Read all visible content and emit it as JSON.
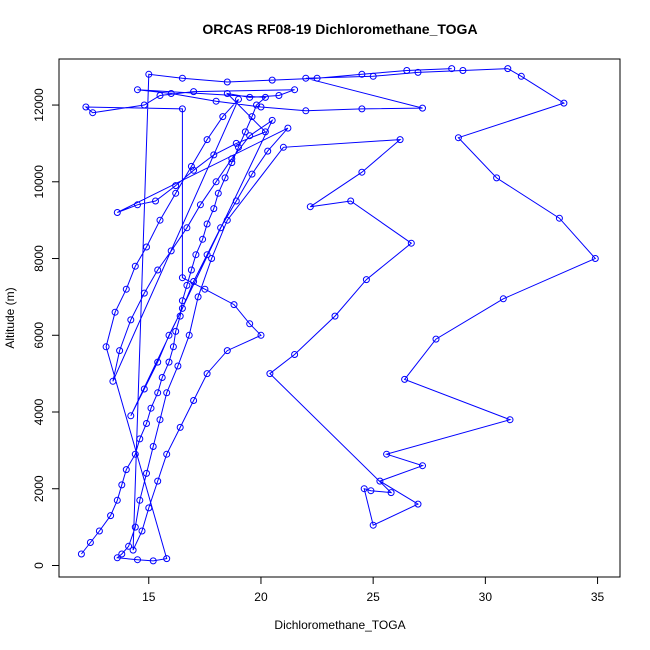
{
  "chart_data": {
    "type": "line",
    "title": "ORCAS RF08-19 Dichloromethane_TOGA",
    "xlabel": "Dichloromethane_TOGA",
    "ylabel": "Altitude (m)",
    "xlim": [
      11,
      36
    ],
    "ylim": [
      -300,
      13200
    ],
    "xticks": [
      15,
      20,
      25,
      30,
      35
    ],
    "yticks": [
      0,
      2000,
      4000,
      6000,
      8000,
      10000,
      12000
    ],
    "markers": "open-circle",
    "series_color": "#0000ff",
    "grid": false,
    "series": [
      {
        "points": [
          [
            12.0,
            300
          ],
          [
            12.4,
            600
          ],
          [
            12.8,
            900
          ],
          [
            13.3,
            1300
          ],
          [
            13.6,
            1700
          ],
          [
            13.8,
            2100
          ],
          [
            14.0,
            2500
          ],
          [
            14.4,
            2900
          ],
          [
            14.6,
            3300
          ],
          [
            14.9,
            3700
          ],
          [
            15.1,
            4100
          ],
          [
            15.4,
            4500
          ],
          [
            15.6,
            4900
          ],
          [
            15.9,
            5300
          ],
          [
            16.1,
            5700
          ],
          [
            16.2,
            6100
          ],
          [
            16.4,
            6500
          ],
          [
            16.5,
            6900
          ],
          [
            16.7,
            7300
          ],
          [
            16.9,
            7700
          ],
          [
            17.1,
            8100
          ],
          [
            17.4,
            8500
          ],
          [
            17.6,
            8900
          ],
          [
            17.9,
            9300
          ],
          [
            18.1,
            9700
          ],
          [
            18.4,
            10100
          ],
          [
            18.7,
            10500
          ],
          [
            19.0,
            10900
          ],
          [
            19.3,
            11300
          ],
          [
            19.6,
            11700
          ],
          [
            19.8,
            12000
          ],
          [
            20.2,
            12200
          ],
          [
            14.5,
            12400
          ],
          [
            16.0,
            12300
          ],
          [
            18.0,
            12100
          ],
          [
            20.0,
            11950
          ],
          [
            22.0,
            11850
          ],
          [
            24.5,
            11900
          ],
          [
            27.2,
            11920
          ],
          [
            22.0,
            12700
          ],
          [
            25.0,
            12750
          ],
          [
            27.0,
            12850
          ],
          [
            29.0,
            12900
          ],
          [
            31.0,
            12950
          ],
          [
            31.6,
            12750
          ],
          [
            33.5,
            12050
          ],
          [
            28.8,
            11150
          ],
          [
            30.5,
            10100
          ],
          [
            33.3,
            9050
          ],
          [
            34.9,
            8000
          ],
          [
            30.8,
            6950
          ],
          [
            27.8,
            5900
          ],
          [
            26.4,
            4850
          ],
          [
            31.1,
            3800
          ],
          [
            25.6,
            2900
          ],
          [
            27.2,
            2600
          ],
          [
            25.3,
            2200
          ],
          [
            27.0,
            1600
          ],
          [
            25.0,
            1050
          ],
          [
            24.6,
            2000
          ],
          [
            24.9,
            1950
          ],
          [
            25.8,
            1900
          ],
          [
            20.4,
            5000
          ],
          [
            21.5,
            5500
          ],
          [
            23.3,
            6500
          ],
          [
            24.7,
            7450
          ],
          [
            26.7,
            8400
          ],
          [
            24.0,
            9500
          ],
          [
            22.2,
            9350
          ],
          [
            24.5,
            10250
          ],
          [
            26.2,
            11100
          ],
          [
            21.0,
            10900
          ],
          [
            18.5,
            9000
          ],
          [
            17.8,
            8000
          ],
          [
            17.2,
            7000
          ],
          [
            16.8,
            6000
          ],
          [
            16.3,
            5200
          ],
          [
            15.8,
            4500
          ],
          [
            15.5,
            3800
          ],
          [
            15.2,
            3100
          ],
          [
            14.9,
            2400
          ],
          [
            14.6,
            1700
          ],
          [
            14.4,
            1000
          ],
          [
            14.1,
            500
          ],
          [
            13.8,
            300
          ],
          [
            13.6,
            200
          ],
          [
            14.5,
            150
          ],
          [
            15.2,
            120
          ],
          [
            15.8,
            180
          ],
          [
            13.1,
            5700
          ],
          [
            13.5,
            6600
          ],
          [
            14.0,
            7200
          ],
          [
            14.4,
            7800
          ],
          [
            14.9,
            8300
          ],
          [
            15.5,
            9000
          ],
          [
            16.2,
            9700
          ],
          [
            16.9,
            10400
          ],
          [
            17.6,
            11100
          ],
          [
            18.3,
            11700
          ],
          [
            19.0,
            12150
          ],
          [
            13.4,
            4800
          ],
          [
            13.7,
            5600
          ],
          [
            14.2,
            6400
          ],
          [
            14.8,
            7100
          ],
          [
            15.4,
            7700
          ],
          [
            16.0,
            8200
          ],
          [
            16.7,
            8800
          ],
          [
            17.3,
            9400
          ],
          [
            18.0,
            10000
          ],
          [
            18.7,
            10600
          ],
          [
            19.5,
            11200
          ],
          [
            20.5,
            11600
          ],
          [
            14.2,
            3900
          ],
          [
            14.8,
            4600
          ],
          [
            15.4,
            5300
          ],
          [
            15.9,
            6000
          ],
          [
            16.5,
            6700
          ],
          [
            17.0,
            7400
          ],
          [
            17.6,
            8100
          ],
          [
            18.2,
            8800
          ],
          [
            18.9,
            9500
          ],
          [
            19.6,
            10200
          ],
          [
            20.3,
            10800
          ],
          [
            21.2,
            11400
          ],
          [
            13.6,
            9200
          ],
          [
            14.5,
            9400
          ],
          [
            15.3,
            9500
          ],
          [
            16.2,
            9900
          ],
          [
            17.0,
            10300
          ],
          [
            17.9,
            10700
          ],
          [
            18.9,
            11000
          ],
          [
            20.2,
            11300
          ],
          [
            18.5,
            12300
          ],
          [
            19.5,
            12200
          ],
          [
            20.8,
            12250
          ],
          [
            21.5,
            12400
          ],
          [
            17.0,
            12350
          ],
          [
            15.5,
            12250
          ],
          [
            14.8,
            12000
          ],
          [
            12.5,
            11800
          ],
          [
            12.2,
            11950
          ],
          [
            16.5,
            11900
          ],
          [
            16.5,
            7500
          ],
          [
            17.5,
            7200
          ],
          [
            18.8,
            6800
          ],
          [
            19.5,
            6300
          ],
          [
            20.0,
            6000
          ],
          [
            18.5,
            5600
          ],
          [
            17.6,
            5000
          ],
          [
            17.0,
            4300
          ],
          [
            16.4,
            3600
          ],
          [
            15.8,
            2900
          ],
          [
            15.4,
            2200
          ],
          [
            15.0,
            1500
          ],
          [
            14.7,
            900
          ],
          [
            14.3,
            400
          ],
          [
            15.0,
            12800
          ],
          [
            16.5,
            12700
          ],
          [
            18.5,
            12600
          ],
          [
            20.5,
            12650
          ],
          [
            22.5,
            12700
          ],
          [
            24.5,
            12800
          ],
          [
            26.5,
            12900
          ],
          [
            28.5,
            12950
          ]
        ]
      }
    ]
  }
}
